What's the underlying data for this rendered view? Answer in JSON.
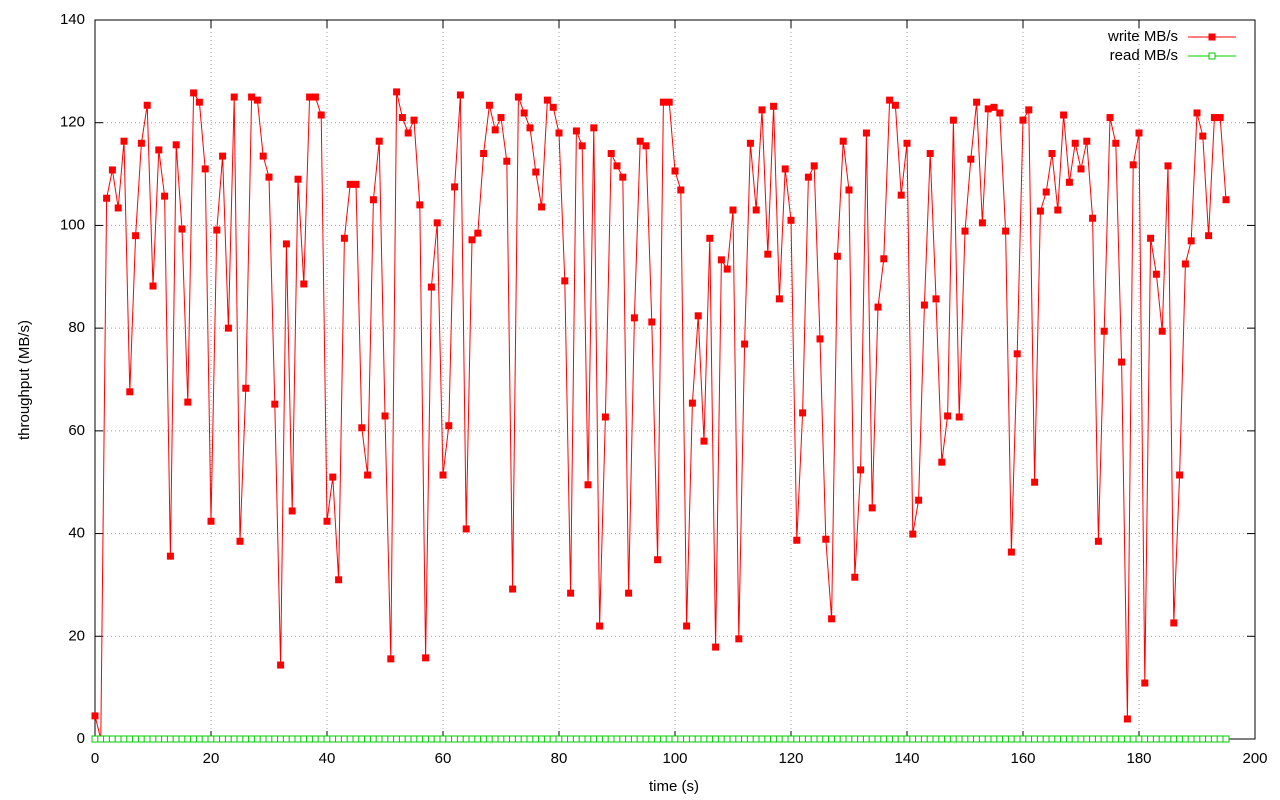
{
  "chart_data": {
    "type": "line",
    "xlabel": "time (s)",
    "ylabel": "throughput (MB/s)",
    "xlim": [
      0,
      200
    ],
    "ylim": [
      0,
      140
    ],
    "xticks": [
      0,
      20,
      40,
      60,
      80,
      100,
      120,
      140,
      160,
      180,
      200
    ],
    "yticks": [
      0,
      20,
      40,
      60,
      80,
      100,
      120,
      140
    ],
    "grid": true,
    "legend": "top-right",
    "x": [
      0,
      1,
      2,
      3,
      4,
      5,
      6,
      7,
      8,
      9,
      10,
      11,
      12,
      13,
      14,
      15,
      16,
      17,
      18,
      19,
      20,
      21,
      22,
      23,
      24,
      25,
      26,
      27,
      28,
      29,
      30,
      31,
      32,
      33,
      34,
      35,
      36,
      37,
      38,
      39,
      40,
      41,
      42,
      43,
      44,
      45,
      46,
      47,
      48,
      49,
      50,
      51,
      52,
      53,
      54,
      55,
      56,
      57,
      58,
      59,
      60,
      61,
      62,
      63,
      64,
      65,
      66,
      67,
      68,
      69,
      70,
      71,
      72,
      73,
      74,
      75,
      76,
      77,
      78,
      79,
      80,
      81,
      82,
      83,
      84,
      85,
      86,
      87,
      88,
      89,
      90,
      91,
      92,
      93,
      94,
      95,
      96,
      97,
      98,
      99,
      100,
      101,
      102,
      103,
      104,
      105,
      106,
      107,
      108,
      109,
      110,
      111,
      112,
      113,
      114,
      115,
      116,
      117,
      118,
      119,
      120,
      121,
      122,
      123,
      124,
      125,
      126,
      127,
      128,
      129,
      130,
      131,
      132,
      133,
      134,
      135,
      136,
      137,
      138,
      139,
      140,
      141,
      142,
      143,
      144,
      145,
      146,
      147,
      148,
      149,
      150,
      151,
      152,
      153,
      154,
      155,
      156,
      157,
      158,
      159,
      160,
      161,
      162,
      163,
      164,
      165,
      166,
      167,
      168,
      169,
      170,
      171,
      172,
      173,
      174,
      175,
      176,
      177,
      178,
      179,
      180,
      181,
      182,
      183,
      184,
      185,
      186,
      187,
      188,
      189,
      190,
      191,
      192,
      193,
      194,
      195
    ],
    "series": [
      {
        "name": "write MB/s",
        "color": "#ff0000",
        "marker": "filled",
        "values": [
          4.5,
          0,
          105.3,
          110.8,
          103.4,
          116.4,
          67.6,
          98,
          116,
          123.4,
          88.2,
          114.7,
          105.7,
          35.6,
          115.7,
          99.3,
          65.6,
          125.8,
          124,
          111,
          42.4,
          99.1,
          113.5,
          80,
          125,
          38.5,
          68.3,
          125,
          124.4,
          113.5,
          109.4,
          65.2,
          14.4,
          96.4,
          44.4,
          109,
          88.6,
          125,
          125,
          121.5,
          42.4,
          51,
          31,
          97.5,
          108,
          108,
          60.6,
          51.4,
          105,
          116.4,
          62.9,
          15.6,
          126,
          121,
          118,
          120.5,
          104,
          15.8,
          88,
          100.5,
          51.4,
          61,
          107.5,
          125.4,
          40.9,
          97.2,
          98.5,
          114,
          123.4,
          118.6,
          121,
          112.5,
          29.2,
          125,
          121.9,
          119,
          110.4,
          103.6,
          124.4,
          123,
          118,
          89.2,
          28.4,
          118.4,
          115.5,
          49.5,
          119,
          22,
          62.7,
          114,
          111.6,
          109.4,
          28.4,
          82,
          116.4,
          115.5,
          81.2,
          34.9,
          124,
          124,
          110.6,
          106.9,
          22,
          65.4,
          82.4,
          58,
          97.5,
          17.9,
          93.3,
          91.5,
          103,
          19.5,
          76.9,
          116,
          103,
          122.5,
          94.4,
          123.2,
          85.7,
          111,
          101,
          38.7,
          63.5,
          109.4,
          111.6,
          77.9,
          38.9,
          23.4,
          94,
          116.4,
          106.9,
          31.5,
          52.4,
          118,
          45,
          84.1,
          93.5,
          124.4,
          123.4,
          105.9,
          116,
          39.9,
          46.5,
          84.5,
          114,
          85.7,
          53.9,
          62.9,
          120.5,
          62.7,
          98.9,
          112.9,
          124,
          100.5,
          122.7,
          123,
          121.9,
          98.9,
          36.4,
          75,
          120.5,
          122.5,
          50,
          102.8,
          106.5,
          114,
          103,
          121.5,
          108.4,
          116,
          111,
          116.4,
          101.4,
          38.5,
          79.4,
          121,
          116,
          73.4,
          3.9,
          111.8,
          118,
          10.9,
          97.5,
          90.5,
          79.4,
          111.6,
          22.6,
          51.4,
          92.5,
          97,
          121.9,
          117.4,
          98,
          121,
          121,
          105
        ]
      },
      {
        "name": "read MB/s",
        "color": "#00cc00",
        "marker": "open",
        "values": [
          0,
          0,
          0,
          0,
          0,
          0,
          0,
          0,
          0,
          0,
          0,
          0,
          0,
          0,
          0,
          0,
          0,
          0,
          0,
          0,
          0,
          0,
          0,
          0,
          0,
          0,
          0,
          0,
          0,
          0,
          0,
          0,
          0,
          0,
          0,
          0,
          0,
          0,
          0,
          0,
          0,
          0,
          0,
          0,
          0,
          0,
          0,
          0,
          0,
          0,
          0,
          0,
          0,
          0,
          0,
          0,
          0,
          0,
          0,
          0,
          0,
          0,
          0,
          0,
          0,
          0,
          0,
          0,
          0,
          0,
          0,
          0,
          0,
          0,
          0,
          0,
          0,
          0,
          0,
          0,
          0,
          0,
          0,
          0,
          0,
          0,
          0,
          0,
          0,
          0,
          0,
          0,
          0,
          0,
          0,
          0,
          0,
          0,
          0,
          0,
          0,
          0,
          0,
          0,
          0,
          0,
          0,
          0,
          0,
          0,
          0,
          0,
          0,
          0,
          0,
          0,
          0,
          0,
          0,
          0,
          0,
          0,
          0,
          0,
          0,
          0,
          0,
          0,
          0,
          0,
          0,
          0,
          0,
          0,
          0,
          0,
          0,
          0,
          0,
          0,
          0,
          0,
          0,
          0,
          0,
          0,
          0,
          0,
          0,
          0,
          0,
          0,
          0,
          0,
          0,
          0,
          0,
          0,
          0,
          0,
          0,
          0,
          0,
          0,
          0,
          0,
          0,
          0,
          0,
          0,
          0,
          0,
          0,
          0,
          0,
          0,
          0,
          0,
          0,
          0,
          0,
          0,
          0,
          0,
          0,
          0,
          0,
          0,
          0,
          0,
          0,
          0,
          0,
          0,
          0,
          0
        ]
      }
    ]
  }
}
